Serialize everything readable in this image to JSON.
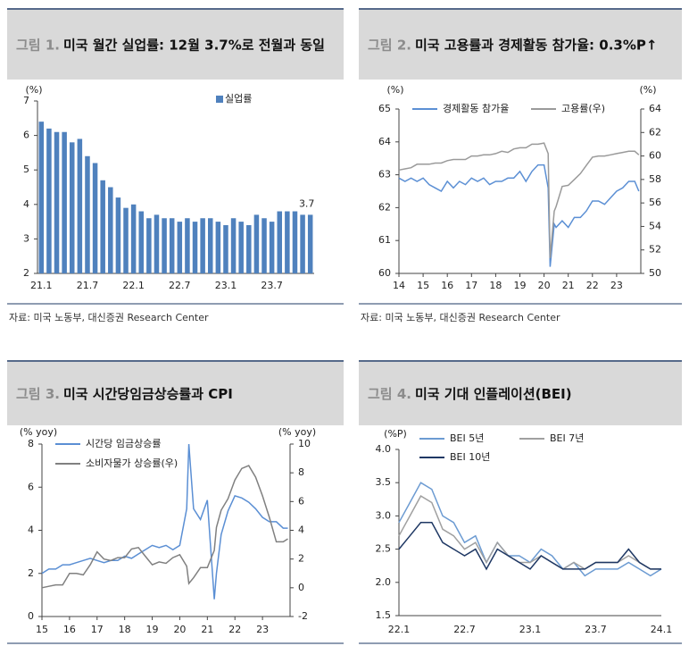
{
  "chart_data": [
    {
      "type": "bar",
      "figure_label": "그림 1.",
      "title": "미국 월간 실업률: 12월 3.7%로 전월과 동일",
      "y_unit": "(%)",
      "categories": [
        "21.1",
        null,
        null,
        null,
        null,
        null,
        "21.7",
        null,
        null,
        null,
        null,
        null,
        "22.1",
        null,
        null,
        null,
        null,
        null,
        "22.7",
        null,
        null,
        null,
        null,
        null,
        "23.1",
        null,
        null,
        null,
        null,
        null,
        "23.7",
        null,
        null,
        null,
        null,
        null
      ],
      "series": [
        {
          "name": "실업률",
          "color": "#4f81bd",
          "values": [
            6.4,
            6.2,
            6.1,
            6.1,
            5.8,
            5.9,
            5.4,
            5.2,
            4.7,
            4.5,
            4.2,
            3.9,
            4.0,
            3.8,
            3.6,
            3.7,
            3.6,
            3.6,
            3.5,
            3.6,
            3.5,
            3.6,
            3.6,
            3.5,
            3.4,
            3.6,
            3.5,
            3.4,
            3.7,
            3.6,
            3.5,
            3.8,
            3.8,
            3.8,
            3.7,
            3.7
          ],
          "value_labels": [
            null,
            null,
            null,
            null,
            null,
            null,
            null,
            null,
            null,
            null,
            null,
            null,
            null,
            null,
            null,
            null,
            null,
            null,
            null,
            null,
            null,
            null,
            null,
            null,
            null,
            null,
            null,
            null,
            null,
            null,
            null,
            null,
            null,
            null,
            null,
            "3.7"
          ]
        }
      ],
      "ylim": [
        2,
        7
      ],
      "yticks": [
        2,
        3,
        4,
        5,
        6,
        7
      ],
      "source": "자료: 미국 노동부, 대신증권 Research Center"
    },
    {
      "type": "line",
      "figure_label": "그림 2.",
      "title": "미국 고용률과 경제활동 참가율: 0.3%P↑",
      "y_unit": "(%)",
      "y2_unit": "(%)",
      "x": [
        14,
        14.25,
        14.5,
        14.75,
        15,
        15.25,
        15.5,
        15.75,
        16,
        16.25,
        16.5,
        16.75,
        17,
        17.25,
        17.5,
        17.75,
        18,
        18.25,
        18.5,
        18.75,
        19,
        19.25,
        19.5,
        19.75,
        20,
        20.17,
        20.25,
        20.42,
        20.5,
        20.75,
        21,
        21.25,
        21.5,
        21.75,
        22,
        22.25,
        22.5,
        22.75,
        23,
        23.25,
        23.5,
        23.75,
        23.92
      ],
      "series": [
        {
          "name": "경제활동 참가율",
          "color": "#5b8fd4",
          "values": [
            62.9,
            62.8,
            62.9,
            62.8,
            62.9,
            62.7,
            62.6,
            62.5,
            62.8,
            62.6,
            62.8,
            62.7,
            62.9,
            62.8,
            62.9,
            62.7,
            62.8,
            62.8,
            62.9,
            62.9,
            63.1,
            62.8,
            63.1,
            63.3,
            63.3,
            62.6,
            60.2,
            61.5,
            61.4,
            61.6,
            61.4,
            61.7,
            61.7,
            61.9,
            62.2,
            62.2,
            62.1,
            62.3,
            62.5,
            62.6,
            62.8,
            62.8,
            62.5
          ]
        },
        {
          "name": "고용률(우)",
          "color": "#9a9a9a",
          "axis": "y2",
          "values": [
            58.8,
            58.9,
            59.0,
            59.3,
            59.3,
            59.3,
            59.4,
            59.4,
            59.6,
            59.7,
            59.7,
            59.7,
            60.0,
            60.0,
            60.1,
            60.1,
            60.2,
            60.4,
            60.3,
            60.6,
            60.7,
            60.7,
            61.0,
            61.0,
            61.1,
            60.2,
            51.3,
            55.3,
            55.7,
            57.4,
            57.5,
            58.0,
            58.5,
            59.2,
            59.9,
            60.0,
            60.0,
            60.1,
            60.2,
            60.3,
            60.4,
            60.4,
            60.1
          ]
        }
      ],
      "xlim": [
        14,
        24
      ],
      "xticks": [
        14,
        15,
        16,
        17,
        18,
        19,
        20,
        21,
        22,
        23
      ],
      "ylim": [
        60,
        65
      ],
      "yticks": [
        60,
        61,
        62,
        63,
        64,
        65
      ],
      "y2lim": [
        50,
        64
      ],
      "y2ticks": [
        50,
        52,
        54,
        56,
        58,
        60,
        62,
        64
      ],
      "source": "자료: 미국 노동부, 대신증권 Research Center"
    },
    {
      "type": "line",
      "figure_label": "그림 3.",
      "title": "미국 시간당임금상승률과 CPI",
      "y_unit": "(% yoy)",
      "y2_unit": "(% yoy)",
      "x": [
        15,
        15.25,
        15.5,
        15.75,
        16,
        16.25,
        16.5,
        16.75,
        17,
        17.25,
        17.5,
        17.75,
        18,
        18.25,
        18.5,
        18.75,
        19,
        19.25,
        19.5,
        19.75,
        20,
        20.25,
        20.33,
        20.5,
        20.75,
        21,
        21.25,
        21.33,
        21.5,
        21.75,
        22,
        22.25,
        22.5,
        22.75,
        23,
        23.25,
        23.5,
        23.75,
        23.92
      ],
      "series": [
        {
          "name": "시간당 임금상승률",
          "color": "#5b8fd4",
          "values": [
            2.0,
            2.2,
            2.2,
            2.4,
            2.4,
            2.5,
            2.6,
            2.7,
            2.6,
            2.5,
            2.6,
            2.6,
            2.8,
            2.7,
            2.9,
            3.1,
            3.3,
            3.2,
            3.3,
            3.1,
            3.3,
            5.0,
            8.0,
            5.0,
            4.5,
            5.4,
            0.8,
            2.0,
            3.8,
            4.9,
            5.6,
            5.5,
            5.3,
            5.0,
            4.6,
            4.4,
            4.4,
            4.1,
            4.1
          ]
        },
        {
          "name": "소비자물가 상승률(우)",
          "color": "#808080",
          "axis": "y2",
          "values": [
            0.0,
            0.1,
            0.2,
            0.2,
            1.0,
            1.0,
            0.9,
            1.6,
            2.5,
            2.0,
            1.9,
            2.1,
            2.1,
            2.7,
            2.8,
            2.2,
            1.6,
            1.8,
            1.7,
            2.1,
            2.3,
            1.5,
            0.3,
            0.7,
            1.4,
            1.4,
            2.6,
            4.2,
            5.4,
            6.2,
            7.5,
            8.3,
            8.5,
            7.7,
            6.4,
            4.9,
            3.2,
            3.2,
            3.4
          ]
        }
      ],
      "xlim": [
        15,
        24
      ],
      "xticks": [
        15,
        16,
        17,
        18,
        19,
        20,
        21,
        22,
        23
      ],
      "ylim": [
        0,
        8
      ],
      "yticks": [
        0,
        2,
        4,
        6,
        8
      ],
      "y2lim": [
        -2,
        10
      ],
      "y2ticks": [
        -2,
        0,
        2,
        4,
        6,
        8,
        10
      ]
    },
    {
      "type": "line",
      "figure_label": "그림 4.",
      "title": "미국 기대 인플레이션(BEI)",
      "y_unit": "(%P)",
      "categories": [
        "22.1",
        null,
        null,
        null,
        null,
        null,
        "22.7",
        null,
        null,
        null,
        null,
        null,
        "23.1",
        null,
        null,
        null,
        null,
        null,
        "23.7",
        null,
        null,
        null,
        null,
        null,
        "24.1"
      ],
      "series": [
        {
          "name": "BEI 5년",
          "color": "#6c9bd2",
          "values": [
            2.9,
            3.2,
            3.5,
            3.4,
            3.0,
            2.9,
            2.6,
            2.7,
            2.3,
            2.6,
            2.4,
            2.4,
            2.3,
            2.5,
            2.4,
            2.2,
            2.3,
            2.1,
            2.2,
            2.2,
            2.2,
            2.3,
            2.2,
            2.1,
            2.2
          ]
        },
        {
          "name": "BEI 7년",
          "color": "#a0a0a0",
          "values": [
            2.7,
            3.0,
            3.3,
            3.2,
            2.8,
            2.7,
            2.5,
            2.6,
            2.3,
            2.6,
            2.4,
            2.3,
            2.3,
            2.4,
            2.3,
            2.2,
            2.3,
            2.2,
            2.3,
            2.3,
            2.3,
            2.4,
            2.3,
            2.2,
            2.2
          ]
        },
        {
          "name": "BEI 10년",
          "color": "#1f3864",
          "values": [
            2.5,
            2.7,
            2.9,
            2.9,
            2.6,
            2.5,
            2.4,
            2.5,
            2.2,
            2.5,
            2.4,
            2.3,
            2.2,
            2.4,
            2.3,
            2.2,
            2.2,
            2.2,
            2.3,
            2.3,
            2.3,
            2.5,
            2.3,
            2.2,
            2.2
          ]
        }
      ],
      "ylim": [
        1.5,
        4
      ],
      "yticks": [
        1.5,
        {
          "value": 2,
          "label": "2.0"
        },
        2.5,
        {
          "value": 3,
          "label": "3.0"
        },
        3.5,
        {
          "value": 4,
          "label": "4.0"
        }
      ]
    }
  ]
}
